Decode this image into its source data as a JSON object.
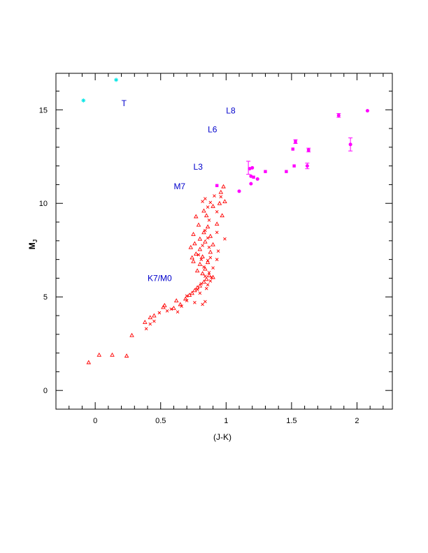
{
  "chart_data": {
    "type": "scatter",
    "xlabel": "(J-K)",
    "ylabel": "M",
    "ylabel_sub": "J",
    "xlim": [
      -0.3,
      2.27
    ],
    "ylim": [
      16.95,
      -1.0
    ],
    "y_inverted": true,
    "x_ticks": [
      {
        "v": 0,
        "label": "0"
      },
      {
        "v": 0.5,
        "label": "0.5"
      },
      {
        "v": 1,
        "label": "1"
      },
      {
        "v": 1.5,
        "label": "1.5"
      },
      {
        "v": 2,
        "label": "2"
      }
    ],
    "y_ticks": [
      {
        "v": 0,
        "label": "0"
      },
      {
        "v": 5,
        "label": "5"
      },
      {
        "v": 10,
        "label": "10"
      },
      {
        "v": 15,
        "label": "15"
      }
    ],
    "grid": false,
    "colors": {
      "red": "#ff0000",
      "magenta": "#ff00ff",
      "cyan": "#00e5e5",
      "blue": "#0000cc"
    },
    "annotations": [
      {
        "text": "K7/M0",
        "x": 0.4,
        "y": 6.0,
        "color": "#0000cc"
      },
      {
        "text": "M7",
        "x": 0.6,
        "y": 10.9,
        "color": "#0000cc"
      },
      {
        "text": "L3",
        "x": 0.75,
        "y": 11.95,
        "color": "#0000cc"
      },
      {
        "text": "L6",
        "x": 0.86,
        "y": 13.95,
        "color": "#0000cc"
      },
      {
        "text": "L8",
        "x": 1.0,
        "y": 14.95,
        "color": "#0000cc"
      },
      {
        "text": "T",
        "x": 0.2,
        "y": 15.35,
        "color": "#0000cc"
      }
    ],
    "series": [
      {
        "marker": "triangle",
        "color": "#ff0000",
        "points": [
          [
            -0.05,
            1.5
          ],
          [
            0.03,
            1.9
          ],
          [
            0.13,
            1.9
          ],
          [
            0.24,
            1.85
          ],
          [
            0.28,
            2.95
          ],
          [
            0.38,
            3.65
          ],
          [
            0.42,
            3.9
          ],
          [
            0.45,
            4.0
          ],
          [
            0.52,
            4.45
          ],
          [
            0.53,
            4.55
          ],
          [
            0.6,
            4.4
          ],
          [
            0.62,
            4.8
          ],
          [
            0.65,
            4.6
          ],
          [
            0.69,
            4.9
          ],
          [
            0.72,
            5.1
          ],
          [
            0.74,
            5.2
          ],
          [
            0.76,
            5.35
          ],
          [
            0.78,
            5.5
          ],
          [
            0.8,
            5.6
          ],
          [
            0.83,
            5.8
          ],
          [
            0.85,
            5.95
          ],
          [
            0.87,
            6.15
          ],
          [
            0.9,
            6.05
          ],
          [
            0.82,
            6.25
          ],
          [
            0.78,
            6.4
          ],
          [
            0.84,
            6.5
          ],
          [
            0.8,
            6.75
          ],
          [
            0.86,
            6.85
          ],
          [
            0.75,
            6.9
          ],
          [
            0.74,
            7.1
          ],
          [
            0.82,
            7.15
          ],
          [
            0.77,
            7.3
          ],
          [
            0.88,
            7.4
          ],
          [
            0.8,
            7.55
          ],
          [
            0.73,
            7.65
          ],
          [
            0.76,
            7.85
          ],
          [
            0.84,
            7.95
          ],
          [
            0.9,
            7.8
          ],
          [
            0.8,
            8.1
          ],
          [
            0.88,
            8.25
          ],
          [
            0.75,
            8.35
          ],
          [
            0.83,
            8.45
          ],
          [
            0.86,
            8.75
          ],
          [
            0.79,
            8.85
          ],
          [
            0.93,
            8.9
          ],
          [
            0.85,
            9.35
          ],
          [
            0.77,
            9.3
          ],
          [
            0.83,
            9.6
          ],
          [
            0.97,
            9.35
          ],
          [
            0.9,
            9.85
          ],
          [
            0.95,
            10.0
          ],
          [
            0.99,
            10.1
          ],
          [
            0.96,
            10.6
          ],
          [
            0.98,
            10.9
          ]
        ]
      },
      {
        "marker": "cross",
        "color": "#ff0000",
        "points": [
          [
            0.39,
            3.3
          ],
          [
            0.42,
            3.55
          ],
          [
            0.45,
            3.7
          ],
          [
            0.49,
            4.15
          ],
          [
            0.55,
            4.25
          ],
          [
            0.58,
            4.35
          ],
          [
            0.63,
            4.2
          ],
          [
            0.66,
            4.5
          ],
          [
            0.7,
            4.8
          ],
          [
            0.7,
            5.05
          ],
          [
            0.76,
            4.7
          ],
          [
            0.78,
            5.4
          ],
          [
            0.8,
            5.2
          ],
          [
            0.82,
            4.6
          ],
          [
            0.84,
            4.75
          ],
          [
            0.85,
            5.45
          ],
          [
            0.86,
            5.65
          ],
          [
            0.81,
            5.7
          ],
          [
            0.88,
            5.85
          ],
          [
            0.89,
            6.05
          ],
          [
            0.84,
            6.1
          ],
          [
            0.87,
            6.3
          ],
          [
            0.9,
            6.55
          ],
          [
            0.83,
            6.6
          ],
          [
            0.86,
            6.95
          ],
          [
            0.88,
            7.1
          ],
          [
            0.81,
            7.0
          ],
          [
            0.79,
            7.25
          ],
          [
            0.93,
            7.0
          ],
          [
            0.87,
            7.65
          ],
          [
            0.94,
            7.45
          ],
          [
            0.82,
            7.75
          ],
          [
            0.86,
            8.15
          ],
          [
            0.99,
            8.1
          ],
          [
            0.93,
            8.45
          ],
          [
            0.84,
            8.55
          ],
          [
            0.87,
            9.1
          ],
          [
            0.93,
            9.55
          ],
          [
            0.86,
            9.8
          ],
          [
            0.82,
            10.1
          ],
          [
            0.96,
            10.35
          ],
          [
            0.84,
            10.25
          ],
          [
            0.91,
            10.4
          ],
          [
            0.88,
            10.05
          ]
        ]
      },
      {
        "marker": "filled-circle",
        "color": "#ff00ff",
        "points": [
          [
            1.1,
            10.65
          ],
          [
            1.19,
            11.05
          ],
          [
            1.19,
            11.45
          ],
          [
            1.24,
            11.3
          ],
          [
            1.2,
            11.9
          ],
          [
            1.18,
            11.85
          ],
          [
            1.62,
            12.0
          ],
          [
            1.63,
            12.85
          ],
          [
            1.86,
            14.7
          ],
          [
            1.95,
            13.15
          ],
          [
            2.08,
            14.95
          ]
        ]
      },
      {
        "marker": "filled-square",
        "color": "#ff00ff",
        "points": [
          [
            0.93,
            10.95
          ],
          [
            1.21,
            11.4
          ],
          [
            1.3,
            11.7
          ],
          [
            1.46,
            11.7
          ],
          [
            1.52,
            12.0
          ],
          [
            1.51,
            12.9
          ],
          [
            1.53,
            13.3
          ]
        ]
      },
      {
        "marker": "star",
        "color": "#00e5e5",
        "points": [
          [
            -0.09,
            15.5
          ],
          [
            0.16,
            16.6
          ]
        ]
      }
    ],
    "error_bars": [
      {
        "x": 1.17,
        "y": 11.9,
        "yerr": 0.35,
        "color": "#ff00ff"
      },
      {
        "x": 1.62,
        "y": 12.0,
        "yerr": 0.15,
        "color": "#ff00ff"
      },
      {
        "x": 1.95,
        "y": 13.15,
        "yerr": 0.35,
        "color": "#ff00ff"
      },
      {
        "x": 1.63,
        "y": 12.85,
        "yerr": 0.1,
        "color": "#ff00ff"
      },
      {
        "x": 1.53,
        "y": 13.3,
        "yerr": 0.1,
        "color": "#ff00ff"
      },
      {
        "x": 1.86,
        "y": 14.7,
        "yerr": 0.1,
        "color": "#ff00ff"
      }
    ]
  }
}
